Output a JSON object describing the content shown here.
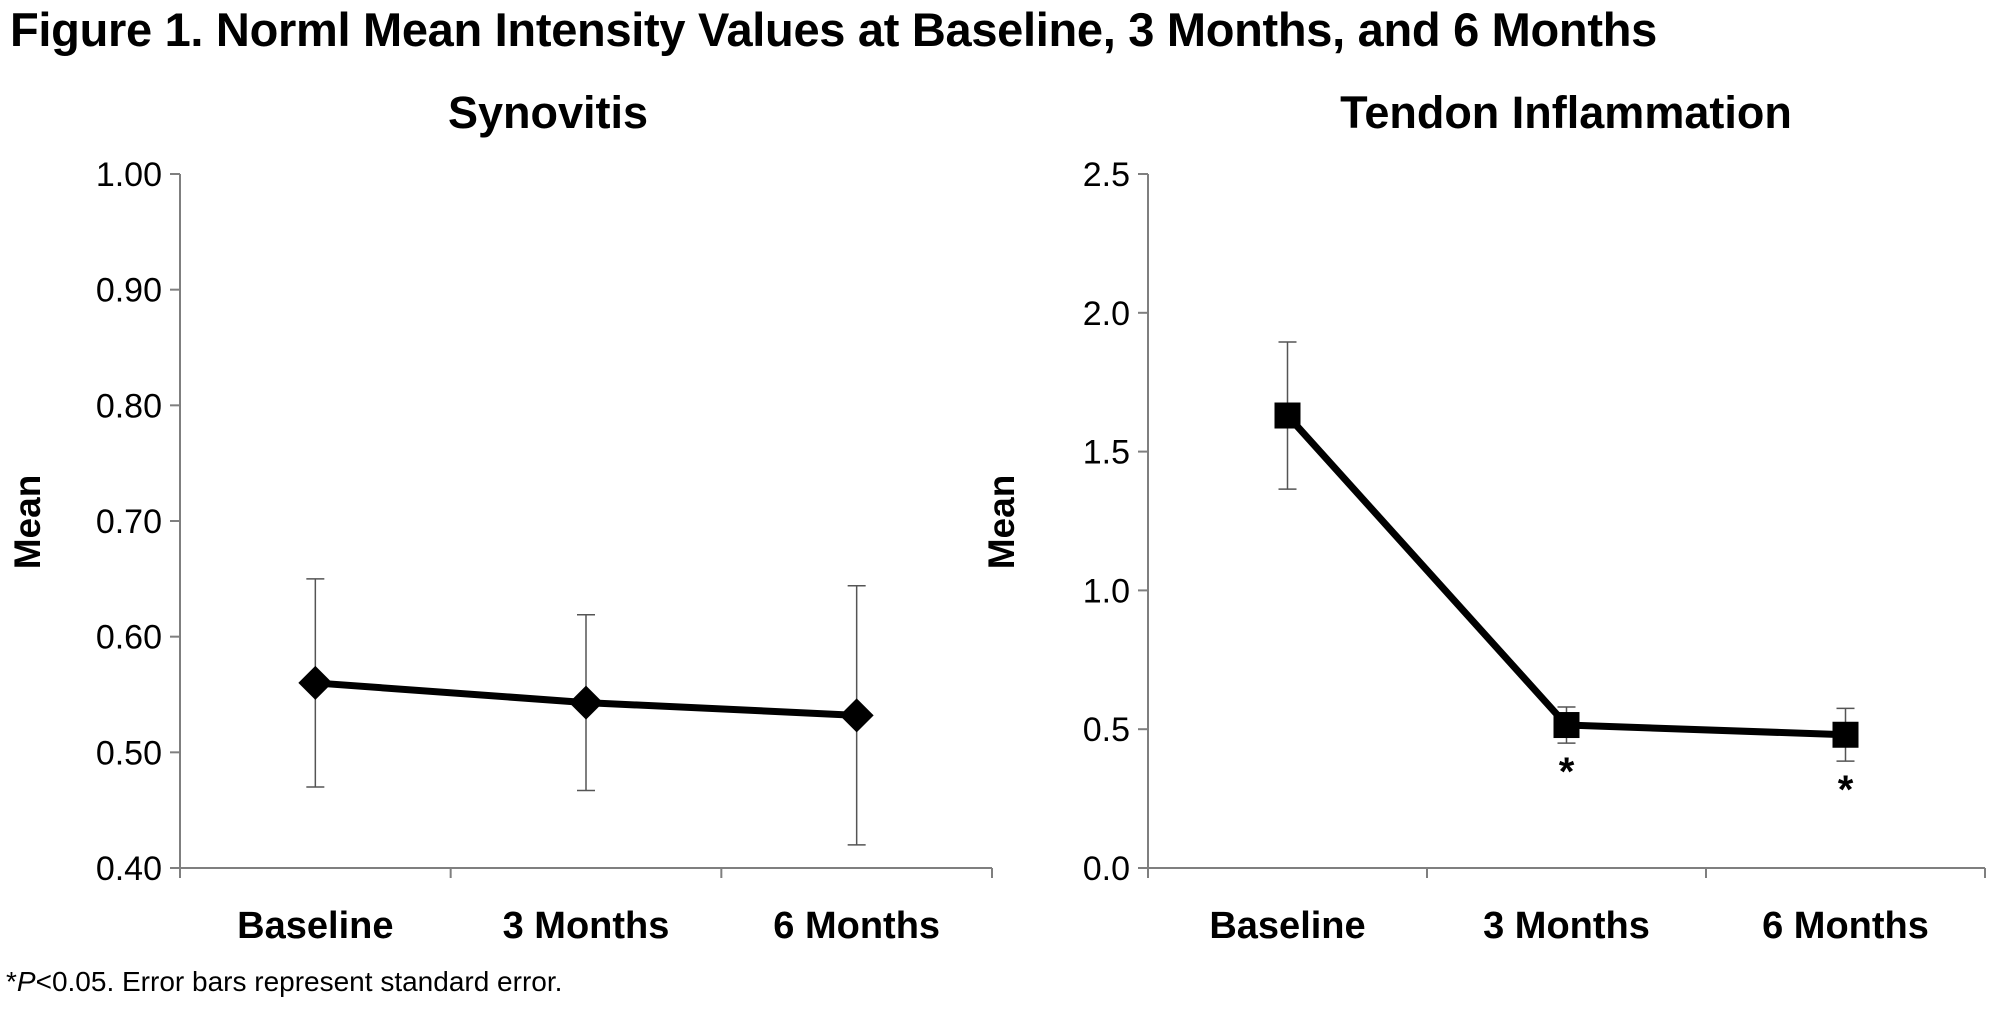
{
  "figure": {
    "title": "Figure 1. Norml Mean Intensity Values at Baseline, 3 Months, and 6 Months",
    "footnote_star": "*",
    "footnote_p": "P",
    "footnote_rest": "<0.05. Error bars represent standard error."
  },
  "chart_data": [
    {
      "type": "line",
      "title": "Synovitis",
      "xlabel": "",
      "ylabel": "Mean",
      "categories": [
        "Baseline",
        "3 Months",
        "6 Months"
      ],
      "ylim": [
        0.4,
        1.0
      ],
      "yticks": [
        "0.40",
        "0.50",
        "0.60",
        "0.70",
        "0.80",
        "0.90",
        "1.00"
      ],
      "marker": "diamond",
      "grid": false,
      "legend": "none",
      "series": [
        {
          "values": [
            0.56,
            0.543,
            0.532
          ],
          "error": [
            0.09,
            0.076,
            0.112
          ]
        }
      ],
      "annotations": [
        "",
        "",
        ""
      ]
    },
    {
      "type": "line",
      "title": "Tendon Inflammation",
      "xlabel": "",
      "ylabel": "Mean",
      "categories": [
        "Baseline",
        "3 Months",
        "6 Months"
      ],
      "ylim": [
        0.0,
        2.5
      ],
      "yticks": [
        "0.0",
        "0.5",
        "1.0",
        "1.5",
        "2.0",
        "2.5"
      ],
      "marker": "square",
      "grid": false,
      "legend": "none",
      "series": [
        {
          "values": [
            1.63,
            0.515,
            0.48
          ],
          "error": [
            0.265,
            0.065,
            0.095
          ]
        }
      ],
      "annotations": [
        "",
        "*",
        "*"
      ]
    }
  ]
}
